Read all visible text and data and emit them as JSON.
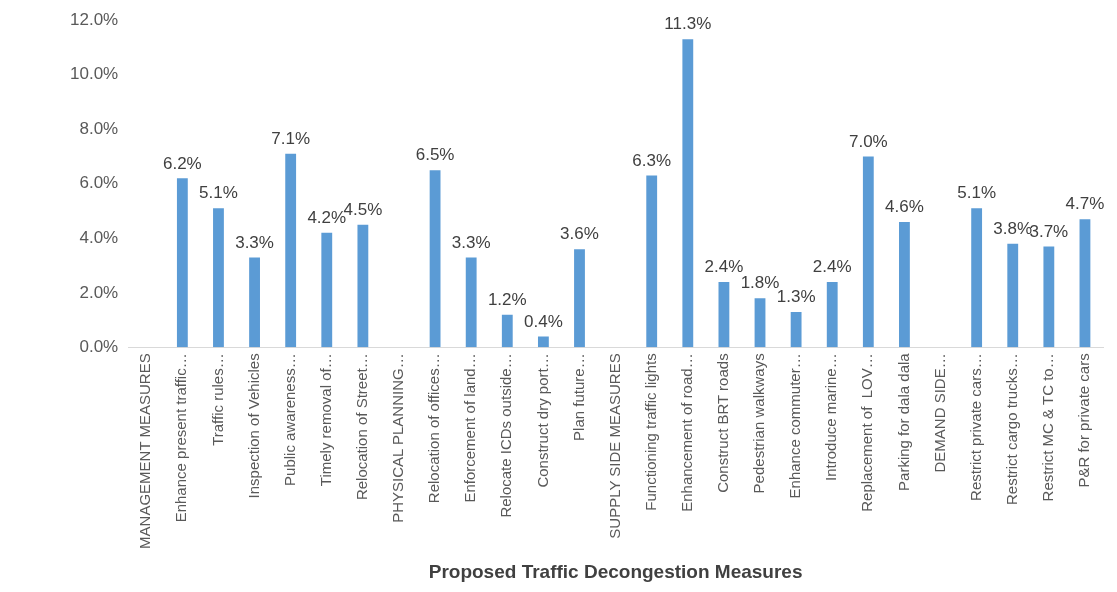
{
  "chart_data": {
    "type": "bar",
    "xlabel": "Proposed Traffic Decongestion Measures",
    "categories": [
      "MANAGEMENT MEASURES",
      "Enhance present traffic…",
      "Traffic rules…",
      "Inspection of Vehicles",
      "Public awareness…",
      "Timely removal of…",
      "Relocation of Street…",
      "PHYSICAL PLANNING…",
      "Relocation of offices…",
      "Enforcement of land…",
      "Relocate ICDs outside…",
      "Construct dry port…",
      "Plan future…",
      "SUPPLY SIDE MEASURES",
      "Functioning traffic lights",
      "Enhancement of road…",
      "Construct BRT roads",
      "Pedestrian walkways",
      "Enhance commuter…",
      "Introduce marine…",
      "Replacement of  LOV…",
      "Parking for dala dala",
      "DEMAND SIDE…",
      "Restrict private cars…",
      "Restrict cargo trucks…",
      "Restrict MC & TC to…",
      "P&R for private cars"
    ],
    "values": [
      null,
      6.2,
      5.1,
      3.3,
      7.1,
      4.2,
      4.5,
      null,
      6.5,
      3.3,
      1.2,
      0.4,
      3.6,
      null,
      6.3,
      11.3,
      2.4,
      1.8,
      1.3,
      2.4,
      7.0,
      4.6,
      null,
      5.1,
      3.8,
      3.7,
      4.7
    ],
    "value_labels": [
      null,
      "6.2%",
      "5.1%",
      "3.3%",
      "7.1%",
      "4.2%",
      "4.5%",
      null,
      "6.5%",
      "3.3%",
      "1.2%",
      "0.4%",
      "3.6%",
      null,
      "6.3%",
      "11.3%",
      "2.4%",
      "1.8%",
      "1.3%",
      "2.4%",
      "7.0%",
      "4.6%",
      null,
      "5.1%",
      "3.8%",
      "3.7%",
      "4.7%"
    ],
    "color": "#5b9bd5",
    "ylim": [
      0,
      12
    ],
    "yticks": [
      {
        "value": 0,
        "label": "0.0%"
      },
      {
        "value": 2,
        "label": "2.0%"
      },
      {
        "value": 4,
        "label": "4.0%"
      },
      {
        "value": 6,
        "label": "6.0%"
      },
      {
        "value": 8,
        "label": "8.0%"
      },
      {
        "value": 10,
        "label": "10.0%"
      },
      {
        "value": 12,
        "label": "12.0%"
      }
    ],
    "grid": false,
    "legend": false
  }
}
